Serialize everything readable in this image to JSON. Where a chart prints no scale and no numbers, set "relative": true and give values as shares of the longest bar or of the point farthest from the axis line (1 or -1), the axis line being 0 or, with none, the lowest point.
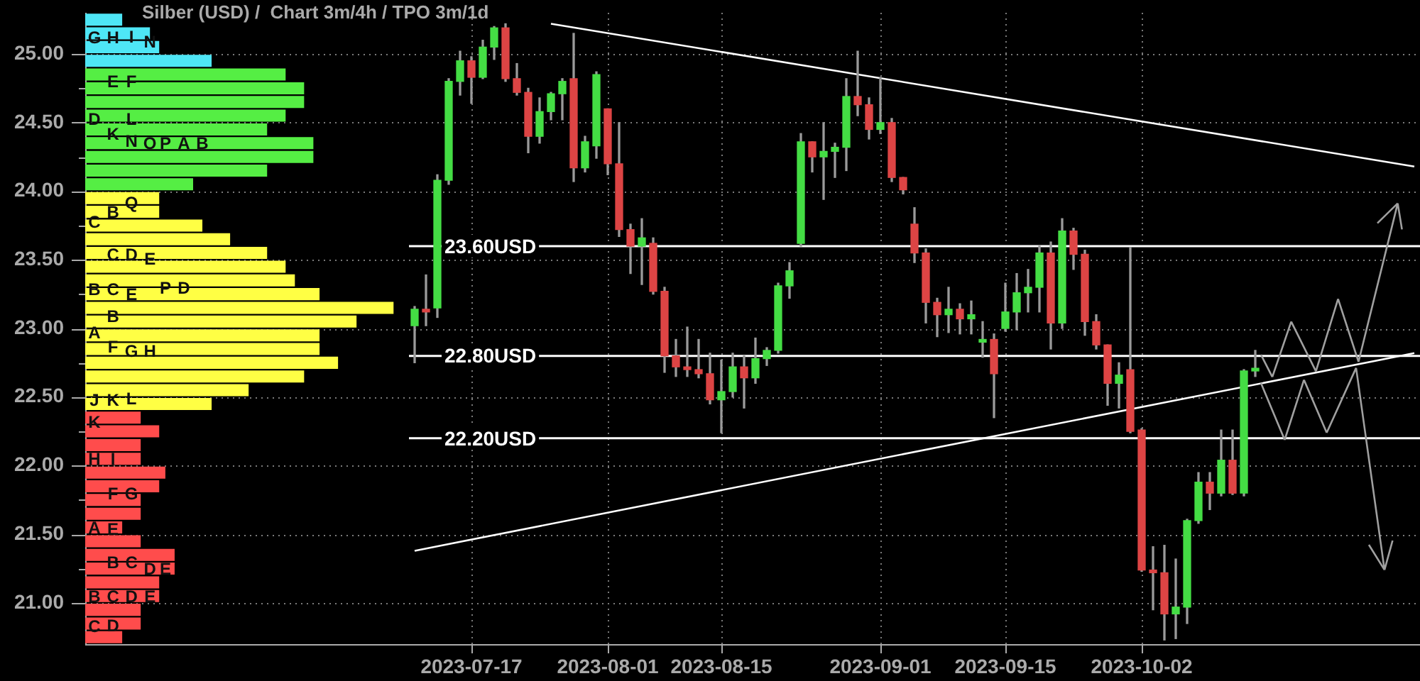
{
  "chart_data": [
    {
      "type": "bar",
      "title": "Silber (USD) /  Chart 3m/4h / TPO 3m/1d",
      "orientation": "horizontal",
      "relative": true,
      "x": [
        20.75,
        20.85,
        20.95,
        21.05,
        21.15,
        21.25,
        21.35,
        21.45,
        21.55,
        21.65,
        21.75,
        21.85,
        21.95,
        22.05,
        22.15,
        22.25,
        22.35,
        22.45,
        22.55,
        22.65,
        22.75,
        22.85,
        22.95,
        23.05,
        23.15,
        23.25,
        23.35,
        23.45,
        23.55,
        23.65,
        23.75,
        23.85,
        23.95,
        24.05,
        24.15,
        24.25,
        24.35,
        24.45,
        24.55,
        24.65,
        24.75,
        24.85,
        24.95,
        25.05,
        25.15,
        25.25
      ],
      "values": [
        0.12,
        0.18,
        0.18,
        0.24,
        0.24,
        0.29,
        0.29,
        0.18,
        0.12,
        0.18,
        0.18,
        0.24,
        0.26,
        0.18,
        0.18,
        0.24,
        0.18,
        0.41,
        0.53,
        0.71,
        0.82,
        0.76,
        0.76,
        0.88,
        1,
        0.76,
        0.68,
        0.65,
        0.59,
        0.47,
        0.38,
        0.24,
        0.24,
        0.35,
        0.59,
        0.74,
        0.74,
        0.59,
        0.65,
        0.71,
        0.71,
        0.65,
        0.41,
        0.24,
        0.21,
        0.12
      ],
      "colors": [
        "#ff4c4c",
        "#ff4c4c",
        "#ff4c4c",
        "#ff4c4c",
        "#ff4c4c",
        "#ff4c4c",
        "#ff4c4c",
        "#ff4c4c",
        "#ff4c4c",
        "#ff4c4c",
        "#ff4c4c",
        "#ff4c4c",
        "#ff4c4c",
        "#ff4c4c",
        "#ff4c4c",
        "#ff4c4c",
        "#ff4c4c",
        "#ffff44",
        "#ffff44",
        "#ffff44",
        "#ffff44",
        "#ffff44",
        "#ffff44",
        "#ffff44",
        "#ffff44",
        "#ffff44",
        "#ffff44",
        "#ffff44",
        "#ffff44",
        "#ffff44",
        "#ffff44",
        "#ffff44",
        "#ffff44",
        "#55ee44",
        "#55ee44",
        "#55ee44",
        "#55ee44",
        "#55ee44",
        "#55ee44",
        "#55ee44",
        "#55ee44",
        "#55ee44",
        "#4ee6f6",
        "#4ee6f6",
        "#4ee6f6",
        "#4ee6f6"
      ],
      "ylim": [
        20.7,
        25.3
      ],
      "yticks": [
        {
          "value": 21,
          "label": "21.00"
        },
        {
          "value": 21.25,
          "label": null
        },
        {
          "value": 21.5,
          "label": "21.50"
        },
        {
          "value": 21.75,
          "label": null
        },
        {
          "value": 22,
          "label": "22.00"
        },
        {
          "value": 22.25,
          "label": null
        },
        {
          "value": 22.5,
          "label": "22.50"
        },
        {
          "value": 22.75,
          "label": null
        },
        {
          "value": 23,
          "label": "23.00"
        },
        {
          "value": 23.25,
          "label": null
        },
        {
          "value": 23.5,
          "label": "23.50"
        },
        {
          "value": 23.75,
          "label": null
        },
        {
          "value": 24,
          "label": "24.00"
        },
        {
          "value": 24.25,
          "label": null
        },
        {
          "value": 24.5,
          "label": "24.50"
        },
        {
          "value": 24.75,
          "label": null
        },
        {
          "value": 25,
          "label": "25.00"
        }
      ],
      "grid": "y",
      "annotations": [
        {
          "text": "G",
          "x": 0.03,
          "y": 25.12
        },
        {
          "text": "H",
          "x": 0.09,
          "y": 25.12
        },
        {
          "text": "I",
          "x": 0.15,
          "y": 25.13
        },
        {
          "text": "N",
          "x": 0.21,
          "y": 25.09
        },
        {
          "text": "E",
          "x": 0.09,
          "y": 24.8
        },
        {
          "text": "F",
          "x": 0.15,
          "y": 24.8
        },
        {
          "text": "D",
          "x": 0.03,
          "y": 24.53
        },
        {
          "text": "L",
          "x": 0.15,
          "y": 24.53
        },
        {
          "text": "K",
          "x": 0.09,
          "y": 24.42
        },
        {
          "text": "N",
          "x": 0.15,
          "y": 24.37
        },
        {
          "text": "O",
          "x": 0.21,
          "y": 24.35
        },
        {
          "text": "P",
          "x": 0.26,
          "y": 24.35
        },
        {
          "text": "A",
          "x": 0.32,
          "y": 24.35
        },
        {
          "text": "B",
          "x": 0.38,
          "y": 24.35
        },
        {
          "text": "Q",
          "x": 0.15,
          "y": 23.92
        },
        {
          "text": "B",
          "x": 0.09,
          "y": 23.85
        },
        {
          "text": "C",
          "x": 0.03,
          "y": 23.78
        },
        {
          "text": "C",
          "x": 0.09,
          "y": 23.54
        },
        {
          "text": "D",
          "x": 0.15,
          "y": 23.54
        },
        {
          "text": "E",
          "x": 0.21,
          "y": 23.51
        },
        {
          "text": "B",
          "x": 0.03,
          "y": 23.29
        },
        {
          "text": "C",
          "x": 0.09,
          "y": 23.29
        },
        {
          "text": "E",
          "x": 0.15,
          "y": 23.25
        },
        {
          "text": "P",
          "x": 0.26,
          "y": 23.3
        },
        {
          "text": "D",
          "x": 0.32,
          "y": 23.3
        },
        {
          "text": "B",
          "x": 0.09,
          "y": 23.09
        },
        {
          "text": "A",
          "x": 0.03,
          "y": 22.97
        },
        {
          "text": "F",
          "x": 0.09,
          "y": 22.87
        },
        {
          "text": "G",
          "x": 0.15,
          "y": 22.84
        },
        {
          "text": "H",
          "x": 0.21,
          "y": 22.84
        },
        {
          "text": "J",
          "x": 0.03,
          "y": 22.48
        },
        {
          "text": "K",
          "x": 0.09,
          "y": 22.48
        },
        {
          "text": "L",
          "x": 0.15,
          "y": 22.49
        },
        {
          "text": "K",
          "x": 0.03,
          "y": 22.32
        },
        {
          "text": "H",
          "x": 0.03,
          "y": 22.05
        },
        {
          "text": "I",
          "x": 0.09,
          "y": 22.05
        },
        {
          "text": "F",
          "x": 0.09,
          "y": 21.8
        },
        {
          "text": "G",
          "x": 0.15,
          "y": 21.8
        },
        {
          "text": "A",
          "x": 0.03,
          "y": 21.55
        },
        {
          "text": "E",
          "x": 0.09,
          "y": 21.54
        },
        {
          "text": "B",
          "x": 0.09,
          "y": 21.3
        },
        {
          "text": "C",
          "x": 0.15,
          "y": 21.3
        },
        {
          "text": "D",
          "x": 0.21,
          "y": 21.25
        },
        {
          "text": "E",
          "x": 0.26,
          "y": 21.25
        },
        {
          "text": "B",
          "x": 0.03,
          "y": 21.05
        },
        {
          "text": "C",
          "x": 0.09,
          "y": 21.05
        },
        {
          "text": "D",
          "x": 0.15,
          "y": 21.05
        },
        {
          "text": "E",
          "x": 0.21,
          "y": 21.05
        },
        {
          "text": "C",
          "x": 0.03,
          "y": 20.83
        },
        {
          "text": "D",
          "x": 0.09,
          "y": 20.84
        }
      ]
    },
    {
      "type": "candlestick",
      "categories": [
        null,
        null,
        null,
        null,
        null,
        "2023-07-17",
        null,
        null,
        null,
        null,
        null,
        null,
        null,
        null,
        null,
        null,
        null,
        "2023-08-01",
        null,
        null,
        null,
        null,
        null,
        null,
        null,
        null,
        null,
        "2023-08-15",
        null,
        null,
        null,
        null,
        null,
        null,
        null,
        null,
        null,
        null,
        null,
        null,
        null,
        "2023-09-01",
        null,
        null,
        null,
        null,
        null,
        null,
        null,
        null,
        null,
        null,
        "2023-09-15",
        null,
        null,
        null,
        null,
        null,
        null,
        null,
        null,
        null,
        null,
        null,
        "2023-10-02",
        null,
        null,
        null,
        null,
        null,
        null,
        null,
        null,
        null,
        null,
        null,
        null,
        null,
        null,
        null,
        null,
        null,
        null,
        null,
        null,
        null,
        null,
        null,
        null
      ],
      "ohlc": [
        [
          23.02,
          23.16,
          22.75,
          23.14
        ],
        [
          23.14,
          23.39,
          23.02,
          23.12
        ],
        [
          23.15,
          24.12,
          23.08,
          24.08
        ],
        [
          24.08,
          24.82,
          24.05,
          24.8
        ],
        [
          24.8,
          25.02,
          24.7,
          24.95
        ],
        [
          24.95,
          24.98,
          24.64,
          24.83
        ],
        [
          24.83,
          25.1,
          24.82,
          25.05
        ],
        [
          25.05,
          25.2,
          24.96,
          25.19
        ],
        [
          25.19,
          25.22,
          24.8,
          24.82
        ],
        [
          24.82,
          24.93,
          24.7,
          24.72
        ],
        [
          24.72,
          24.75,
          24.28,
          24.4
        ],
        [
          24.4,
          24.68,
          24.35,
          24.58
        ],
        [
          24.58,
          24.72,
          24.52,
          24.71
        ],
        [
          24.71,
          24.82,
          24.52,
          24.8
        ],
        [
          24.82,
          25.15,
          24.07,
          24.17
        ],
        [
          24.17,
          24.4,
          24.14,
          24.36
        ],
        [
          24.33,
          24.87,
          24.24,
          24.85
        ],
        [
          24.6,
          24.6,
          24.12,
          24.2
        ],
        [
          24.2,
          24.5,
          23.67,
          23.72
        ],
        [
          23.72,
          23.76,
          23.4,
          23.6
        ],
        [
          23.6,
          23.8,
          23.32,
          23.66
        ],
        [
          23.62,
          23.66,
          23.25,
          23.27
        ],
        [
          23.27,
          23.3,
          22.68,
          22.8
        ],
        [
          22.8,
          22.92,
          22.65,
          22.72
        ],
        [
          22.72,
          23.01,
          22.65,
          22.7
        ],
        [
          22.7,
          22.92,
          22.64,
          22.67
        ],
        [
          22.67,
          22.82,
          22.45,
          22.48
        ],
        [
          22.48,
          22.77,
          22.24,
          22.54
        ],
        [
          22.54,
          22.82,
          22.5,
          22.72
        ],
        [
          22.72,
          22.8,
          22.42,
          22.64
        ],
        [
          22.64,
          22.93,
          22.6,
          22.78
        ],
        [
          22.78,
          22.86,
          22.73,
          22.84
        ],
        [
          22.84,
          23.33,
          22.82,
          23.31
        ],
        [
          23.31,
          23.48,
          23.22,
          23.42
        ],
        [
          23.62,
          24.42,
          23.6,
          24.36
        ],
        [
          24.36,
          24.36,
          24.14,
          24.25
        ],
        [
          24.25,
          24.5,
          23.94,
          24.29
        ],
        [
          24.29,
          24.35,
          24.1,
          24.32
        ],
        [
          24.32,
          24.82,
          24.15,
          24.69
        ],
        [
          24.69,
          25.02,
          24.55,
          24.63
        ],
        [
          24.63,
          24.68,
          24.38,
          24.45
        ],
        [
          24.45,
          24.83,
          24.42,
          24.5
        ],
        [
          24.5,
          24.53,
          24.07,
          24.1
        ],
        [
          24.1,
          24.1,
          23.98,
          24.01
        ],
        [
          23.76,
          23.88,
          23.48,
          23.55
        ],
        [
          23.55,
          23.58,
          23.04,
          23.19
        ],
        [
          23.19,
          23.22,
          22.94,
          23.1
        ],
        [
          23.1,
          23.3,
          22.97,
          23.14
        ],
        [
          23.14,
          23.18,
          22.96,
          23.07
        ],
        [
          23.07,
          23.2,
          22.96,
          23.1
        ],
        [
          22.9,
          23.05,
          22.79,
          22.92
        ],
        [
          22.92,
          22.96,
          22.35,
          22.67
        ],
        [
          23,
          23.33,
          22.98,
          23.12
        ],
        [
          23.12,
          23.4,
          22.99,
          23.26
        ],
        [
          23.26,
          23.43,
          23.12,
          23.3
        ],
        [
          23.3,
          23.6,
          23.12,
          23.55
        ],
        [
          23.55,
          23.63,
          22.85,
          23.04
        ],
        [
          23.04,
          23.8,
          23,
          23.71
        ],
        [
          23.71,
          23.73,
          23.43,
          23.54
        ],
        [
          23.54,
          23.57,
          22.95,
          23.05
        ],
        [
          23.05,
          23.1,
          22.85,
          22.88
        ],
        [
          22.88,
          22.88,
          22.44,
          22.6
        ],
        [
          22.6,
          22.75,
          22.42,
          22.66
        ],
        [
          22.7,
          23.59,
          22.24,
          22.25
        ],
        [
          22.26,
          22.27,
          21.23,
          21.24
        ],
        [
          21.24,
          21.41,
          20.95,
          21.22
        ],
        [
          21.22,
          21.42,
          20.73,
          20.92
        ],
        [
          20.92,
          21.32,
          20.74,
          20.97
        ],
        [
          20.97,
          21.61,
          20.85,
          21.6
        ],
        [
          21.6,
          21.95,
          21.58,
          21.88
        ],
        [
          21.88,
          21.95,
          21.68,
          21.8
        ],
        [
          21.8,
          22.26,
          21.78,
          22.04
        ],
        [
          22.04,
          22.26,
          21.79,
          21.8
        ],
        [
          21.8,
          22.7,
          21.78,
          22.69
        ],
        [
          22.69,
          22.84,
          22.65,
          22.71
        ],
        null,
        null,
        null,
        null,
        null,
        null,
        null,
        null,
        null,
        null,
        null,
        null,
        null,
        null
      ],
      "colors": [
        "#44dd44",
        "#dd4444",
        "#44dd44",
        "#44dd44",
        "#44dd44",
        "#dd4444",
        "#44dd44",
        "#44dd44",
        "#dd4444",
        "#dd4444",
        "#dd4444",
        "#44dd44",
        "#44dd44",
        "#44dd44",
        "#dd4444",
        "#44dd44",
        "#44dd44",
        "#dd4444",
        "#dd4444",
        "#dd4444",
        "#44dd44",
        "#dd4444",
        "#dd4444",
        "#dd4444",
        "#dd4444",
        "#dd4444",
        "#dd4444",
        "#44dd44",
        "#44dd44",
        "#dd4444",
        "#44dd44",
        "#44dd44",
        "#44dd44",
        "#44dd44",
        "#44dd44",
        "#dd4444",
        "#44dd44",
        "#44dd44",
        "#44dd44",
        "#dd4444",
        "#dd4444",
        "#44dd44",
        "#dd4444",
        "#dd4444",
        "#dd4444",
        "#dd4444",
        "#dd4444",
        "#44dd44",
        "#dd4444",
        "#44dd44",
        "#44dd44",
        "#dd4444",
        "#44dd44",
        "#44dd44",
        "#44dd44",
        "#44dd44",
        "#dd4444",
        "#44dd44",
        "#dd4444",
        "#dd4444",
        "#dd4444",
        "#dd4444",
        "#44dd44",
        "#dd4444",
        "#dd4444",
        "#dd4444",
        "#dd4444",
        "#44dd44",
        "#44dd44",
        "#44dd44",
        "#dd4444",
        "#44dd44",
        "#dd4444",
        "#44dd44",
        "#44dd44",
        null,
        null,
        null,
        null,
        null,
        null,
        null,
        null,
        null,
        null,
        null,
        null,
        null,
        null
      ],
      "series": [
        {
          "type": "line",
          "color": "#ffffff",
          "values": [
            null,
            null,
            null,
            null,
            null,
            null,
            null,
            null,
            null,
            null,
            null,
            null,
            25.22,
            null,
            null,
            null,
            null,
            null,
            null,
            null,
            null,
            null,
            null,
            null,
            null,
            null,
            null,
            null,
            null,
            null,
            null,
            null,
            null,
            null,
            null,
            null,
            null,
            null,
            null,
            null,
            null,
            null,
            null,
            null,
            null,
            null,
            null,
            null,
            null,
            null,
            null,
            null,
            null,
            null,
            null,
            null,
            null,
            null,
            null,
            null,
            null,
            null,
            null,
            null,
            null,
            null,
            null,
            null,
            null,
            null,
            null,
            null,
            null,
            null,
            null,
            null,
            null,
            null,
            null,
            null,
            null,
            null,
            null,
            null,
            null,
            null,
            null,
            null,
            24.18
          ]
        },
        {
          "type": "line",
          "color": "#ffffff",
          "values": [
            21.38,
            null,
            null,
            null,
            null,
            null,
            null,
            null,
            null,
            null,
            null,
            null,
            null,
            null,
            null,
            null,
            null,
            null,
            null,
            null,
            null,
            null,
            null,
            null,
            null,
            null,
            null,
            null,
            null,
            null,
            null,
            null,
            null,
            null,
            null,
            null,
            null,
            null,
            null,
            null,
            null,
            null,
            null,
            null,
            null,
            null,
            null,
            null,
            null,
            null,
            null,
            null,
            null,
            null,
            null,
            null,
            null,
            null,
            null,
            null,
            null,
            null,
            null,
            null,
            null,
            null,
            null,
            null,
            null,
            null,
            null,
            null,
            null,
            null,
            null,
            null,
            null,
            null,
            null,
            null,
            null,
            null,
            null,
            null,
            null,
            null,
            null,
            null,
            22.82
          ]
        }
      ],
      "ylim": [
        20.7,
        25.3
      ],
      "yticks": [
        21,
        21.5,
        22,
        22.5,
        23,
        23.5,
        24,
        24.5,
        25
      ],
      "grid": true,
      "tick_labels": "x",
      "ref_lines": [
        {
          "axis": "y",
          "value": 23.6,
          "label": "23.60USD",
          "color": "#ffffff"
        },
        {
          "axis": "y",
          "value": 22.8,
          "label": "22.80USD",
          "color": "#ffffff"
        },
        {
          "axis": "y",
          "value": 22.2,
          "label": "22.20USD",
          "color": "#ffffff"
        }
      ]
    }
  ]
}
